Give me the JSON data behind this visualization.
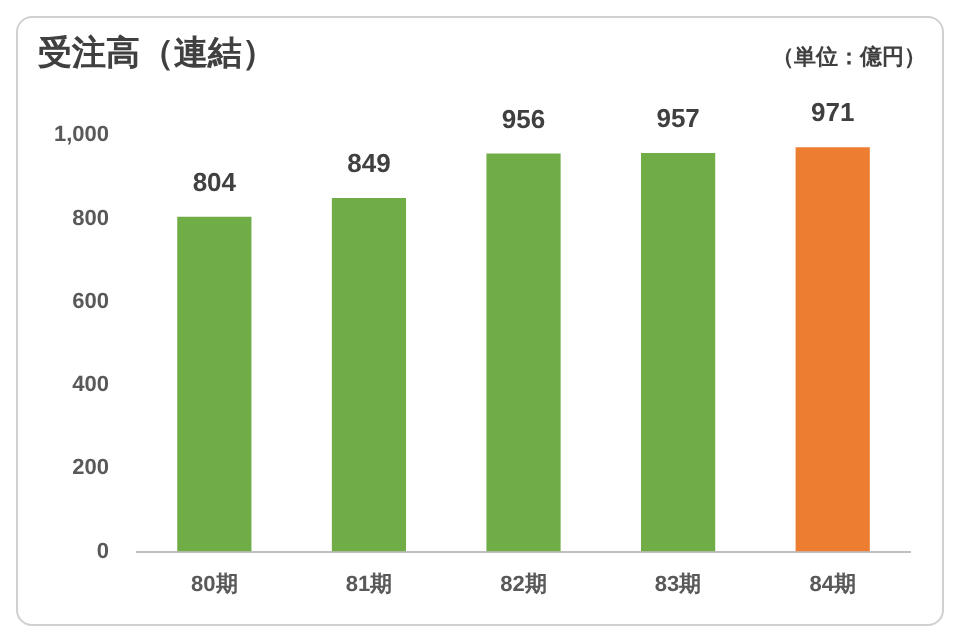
{
  "chart_data": {
    "type": "bar",
    "title": "受注高（連結）",
    "annotations": [
      "（単位：億円）"
    ],
    "categories": [
      "80期",
      "81期",
      "82期",
      "83期",
      "84期"
    ],
    "values": [
      804,
      849,
      956,
      957,
      971
    ],
    "colors": [
      "#70ad47",
      "#70ad47",
      "#70ad47",
      "#70ad47",
      "#ed7d31"
    ],
    "ylim": [
      0,
      1000
    ],
    "yticks": [
      0,
      200,
      400,
      600,
      800,
      {
        "value": 1000,
        "label": "1,000"
      }
    ],
    "grid": false,
    "data_labels": true
  }
}
